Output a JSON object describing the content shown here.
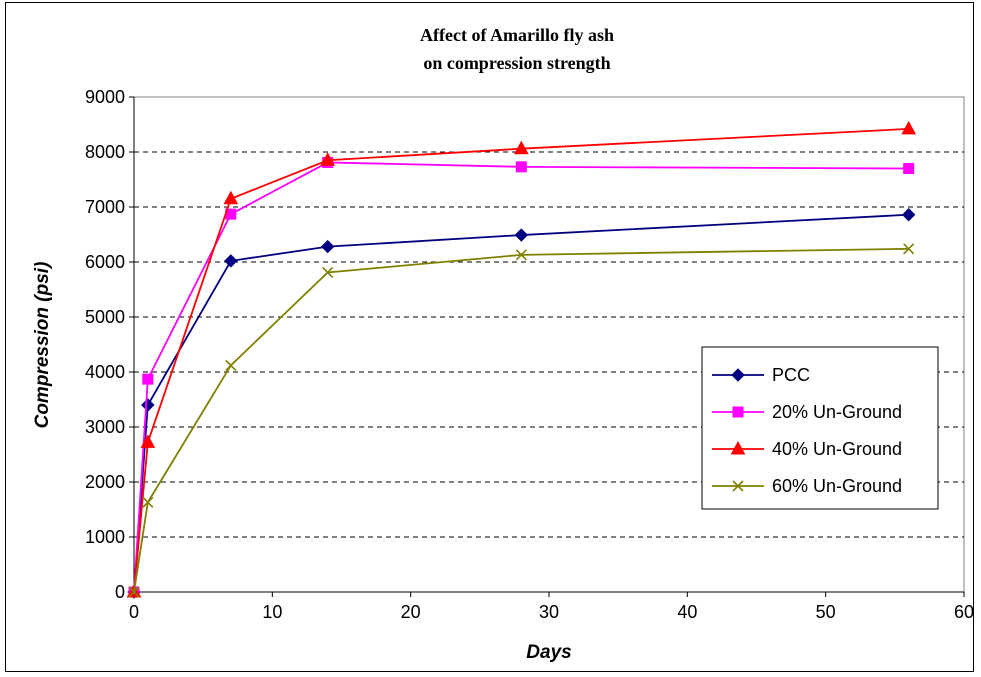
{
  "chart_data": {
    "type": "line",
    "title_line1": "Affect of Amarillo fly ash",
    "title_line2": "on compression strength",
    "xlabel": "Days",
    "ylabel": "Compression (psi)",
    "xlim": [
      0,
      60
    ],
    "ylim": [
      0,
      9000
    ],
    "xticks": [
      0,
      10,
      20,
      30,
      40,
      50,
      60
    ],
    "yticks": [
      0,
      1000,
      2000,
      3000,
      4000,
      5000,
      6000,
      7000,
      8000,
      9000
    ],
    "grid": "horizontal dashed",
    "legend_position": "right",
    "series": [
      {
        "name": "PCC",
        "color": "#000080",
        "marker": "diamond",
        "x": [
          0,
          1,
          7,
          14,
          28,
          56
        ],
        "y": [
          0,
          3400,
          6020,
          6280,
          6490,
          6860
        ]
      },
      {
        "name": "20% Un-Ground",
        "color": "#ff00ff",
        "marker": "square",
        "x": [
          0,
          1,
          7,
          14,
          28,
          56
        ],
        "y": [
          0,
          3870,
          6870,
          7810,
          7730,
          7700
        ]
      },
      {
        "name": "40% Un-Ground",
        "color": "#ff0000",
        "marker": "triangle",
        "x": [
          0,
          1,
          7,
          14,
          28,
          56
        ],
        "y": [
          0,
          2720,
          7150,
          7850,
          8060,
          8420
        ]
      },
      {
        "name": "60% Un-Ground",
        "color": "#808000",
        "marker": "x",
        "x": [
          0,
          1,
          7,
          14,
          28,
          56
        ],
        "y": [
          0,
          1630,
          4120,
          5810,
          6130,
          6240
        ]
      }
    ]
  }
}
